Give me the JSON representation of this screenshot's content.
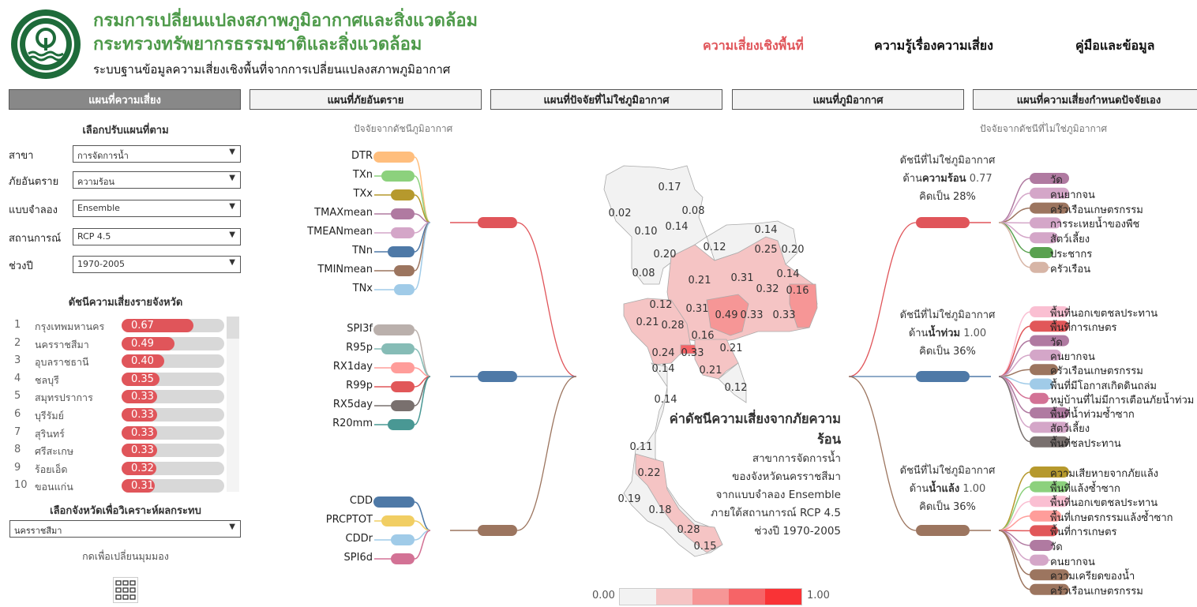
{
  "header": {
    "logo": "department-of-climate-change-and-environment-seal",
    "title_line1": "กรมการเปลี่ยนแปลงสภาพภูมิอากาศและสิ่งแวดล้อม",
    "title_line2": "กระทรวงทรัพยากรธรรมชาติและสิ่งแวดล้อม",
    "subtitle": "ระบบฐานข้อมูลความเสี่ยงเชิงพื้นที่จากการเปลี่ยนแปลงสภาพภูมิอากาศ",
    "nav": [
      {
        "label": "ความเสี่ยงเชิงพื้นที่",
        "active": true,
        "color": "#e0555a"
      },
      {
        "label": "ความรู้เรื่องความเสี่ยง"
      },
      {
        "label": "คู่มือและข้อมูล"
      }
    ]
  },
  "tabs": [
    {
      "label": "แผนที่ความเสี่ยง",
      "active": true
    },
    {
      "label": "แผนที่ภัยอันตราย"
    },
    {
      "label": "แผนที่ปัจจัยที่ไม่ใช่ภูมิอากาศ"
    },
    {
      "label": "แผนที่ภูมิอากาศ"
    },
    {
      "label": "แผนที่ความเสี่ยงกำหนดปัจจัยเอง"
    }
  ],
  "filters": {
    "title": "เลือกปรับแผนที่ตาม",
    "items": [
      {
        "label": "สาขา",
        "value": "การจัดการน้ำ"
      },
      {
        "label": "ภัยอันตราย",
        "value": "ความร้อน"
      },
      {
        "label": "แบบจำลอง",
        "value": "Ensemble"
      },
      {
        "label": "สถานการณ์",
        "value": "RCP 4.5"
      },
      {
        "label": "ช่วงปี",
        "value": "1970-2005"
      }
    ]
  },
  "ranking": {
    "title": "ดัชนีความเสี่ยงรายจังหวัด",
    "rows": [
      {
        "rank": "1",
        "province": "กรุงเทพมหานคร",
        "value": "0.67"
      },
      {
        "rank": "2",
        "province": "นครราชสีมา",
        "value": "0.49"
      },
      {
        "rank": "3",
        "province": "อุบลราชธานี",
        "value": "0.40"
      },
      {
        "rank": "4",
        "province": "ชลบุรี",
        "value": "0.35"
      },
      {
        "rank": "5",
        "province": "สมุทรปราการ",
        "value": "0.33"
      },
      {
        "rank": "6",
        "province": "บุรีรัมย์",
        "value": "0.33"
      },
      {
        "rank": "7",
        "province": "สุรินทร์",
        "value": "0.33"
      },
      {
        "rank": "8",
        "province": "ศรีสะเกษ",
        "value": "0.33"
      },
      {
        "rank": "9",
        "province": "ร้อยเอ็ด",
        "value": "0.32"
      },
      {
        "rank": "10",
        "province": "ขอนแก่น",
        "value": "0.31"
      }
    ]
  },
  "province_select": {
    "title": "เลือกจังหวัดเพื่อวิเคราะห์ผลกระทบ",
    "value": "นครราชสีมา"
  },
  "view_toggle": {
    "label": "กดเพื่อเปลี่ยนมุมมอง",
    "icon": "grid-icon"
  },
  "climate_tree": {
    "title": "ปัจจัยจากดัชนีภูมิอากาศ",
    "groups": [
      {
        "color": "#e0555a",
        "leaves": [
          {
            "label": "DTR",
            "color": "#ffbe7d"
          },
          {
            "label": "TXn",
            "color": "#8cd17d"
          },
          {
            "label": "TXx",
            "color": "#b6992d"
          },
          {
            "label": "TMAXmean",
            "color": "#b07aa1"
          },
          {
            "label": "TMEANmean",
            "color": "#d4a6c8"
          },
          {
            "label": "TNn",
            "color": "#4e79a7"
          },
          {
            "label": "TMINmean",
            "color": "#9c755f"
          },
          {
            "label": "TNx",
            "color": "#a0cbe8"
          }
        ]
      },
      {
        "color": "#4e79a7",
        "leaves": [
          {
            "label": "SPI3f",
            "color": "#bab0ac"
          },
          {
            "label": "R95p",
            "color": "#86bcb6"
          },
          {
            "label": "RX1day",
            "color": "#ff9d9a"
          },
          {
            "label": "R99p",
            "color": "#e15759"
          },
          {
            "label": "RX5day",
            "color": "#79706e"
          },
          {
            "label": "R20mm",
            "color": "#499894"
          }
        ]
      },
      {
        "color": "#9c755f",
        "leaves": [
          {
            "label": "CDD",
            "color": "#4e79a7"
          },
          {
            "label": "PRCPTOT",
            "color": "#f1ce63"
          },
          {
            "label": "CDDr",
            "color": "#a0cbe8"
          },
          {
            "label": "SPI6d",
            "color": "#d37295"
          }
        ]
      }
    ]
  },
  "nonclimate_tree": {
    "title": "ปัจจัยจากดัชนีที่ไม่ใช่ภูมิอากาศ",
    "groups": [
      {
        "color": "#e0555a",
        "info_line1": "ดัชนีที่ไม่ใช่ภูมิอากาศ",
        "info_prefix": "ด้าน",
        "info_bold": "ความร้อน",
        "info_value": "0.77",
        "info_line3": "คิดเป็น 28%",
        "leaves": [
          {
            "label": "วัด",
            "color": "#b07aa1"
          },
          {
            "label": "คนยากจน",
            "color": "#d4a6c8"
          },
          {
            "label": "ครัวเรือนเกษตรกรรม",
            "color": "#9c755f"
          },
          {
            "label": "การระเหยน้ำของพืช",
            "color": "#d4a6c8"
          },
          {
            "label": "สัตว์เลี้ยง",
            "color": "#d4a6c8"
          },
          {
            "label": "ประชากร",
            "color": "#59a14f"
          },
          {
            "label": "ครัวเรือน",
            "color": "#d7b5a6"
          }
        ]
      },
      {
        "color": "#4e79a7",
        "info_line1": "ดัชนีที่ไม่ใช่ภูมิอากาศ",
        "info_prefix": "ด้าน",
        "info_bold": "น้ำท่วม",
        "info_value": "1.00",
        "info_line3": "คิดเป็น 36%",
        "leaves": [
          {
            "label": "พื้นที่นอกเขตชลประทาน",
            "color": "#fabfd2"
          },
          {
            "label": "พื้นที่การเกษตร",
            "color": "#e15759"
          },
          {
            "label": "วัด",
            "color": "#b07aa1"
          },
          {
            "label": "คนยากจน",
            "color": "#d4a6c8"
          },
          {
            "label": "ครัวเรือนเกษตรกรรม",
            "color": "#9c755f"
          },
          {
            "label": "พื้นที่มีโอกาสเกิดดินถล่ม",
            "color": "#a0cbe8"
          },
          {
            "label": "หมู่บ้านที่ไม่มีการเตือนภัยน้ำท่วม",
            "color": "#d37295"
          },
          {
            "label": "พื้นที่น้ำท่วมซ้ำซาก",
            "color": "#b07aa1"
          },
          {
            "label": "สัตว์เลี้ยง",
            "color": "#d4a6c8"
          },
          {
            "label": "พื้นที่ชลประทาน",
            "color": "#79706e"
          }
        ]
      },
      {
        "color": "#9c755f",
        "info_line1": "ดัชนีที่ไม่ใช่ภูมิอากาศ",
        "info_prefix": "ด้าน",
        "info_bold": "น้ำแล้ง",
        "info_value": "1.00",
        "info_line3": "คิดเป็น 36%",
        "leaves": [
          {
            "label": "ความเสียหายจากภัยแล้ง",
            "color": "#b6992d"
          },
          {
            "label": "พื้นที่แล้งซ้ำซาก",
            "color": "#8cd17d"
          },
          {
            "label": "พื้นที่นอกเขตชลประทาน",
            "color": "#fabfd2"
          },
          {
            "label": "พื้นที่เกษตรกรรมแล้งซ้ำซาก",
            "color": "#ff9d9a"
          },
          {
            "label": "พื้นที่การเกษตร",
            "color": "#e15759"
          },
          {
            "label": "วัด",
            "color": "#b07aa1"
          },
          {
            "label": "คนยากจน",
            "color": "#d4a6c8"
          },
          {
            "label": "ความเครียดของน้ำ",
            "color": "#9c755f"
          },
          {
            "label": "ครัวเรือนเกษตรกรรม",
            "color": "#9c755f"
          }
        ]
      }
    ]
  },
  "map": {
    "caption_title": "ค่าดัชนีความเสี่ยงจากภัยความร้อน",
    "caption_lines": [
      "สาขาการจัดการน้ำ",
      "ของจังหวัดนครราชสีมา",
      "จากแบบจำลอง Ensemble",
      "ภายใต้สถานการณ์ RCP 4.5",
      "ช่วงปี 1970-2005"
    ],
    "province_values": [
      "0.17",
      "0.02",
      "0.08",
      "0.10",
      "0.14",
      "0.20",
      "0.12",
      "0.14",
      "0.25",
      "0.20",
      "0.08",
      "0.21",
      "0.31",
      "0.14",
      "0.32",
      "0.16",
      "0.12",
      "0.31",
      "0.49",
      "0.33",
      "0.33",
      "0.21",
      "0.28",
      "0.16",
      "0.21",
      "0.24",
      "0.33",
      "0.14",
      "0.21",
      "0.12",
      "0.14",
      "0.11",
      "0.22",
      "0.19",
      "0.18",
      "0.28",
      "0.15"
    ],
    "legend": {
      "min": "0.00",
      "max": "1.00",
      "colors": [
        "#f2f2f2",
        "#f5c4c4",
        "#f69696",
        "#f66467",
        "#f93336"
      ]
    }
  }
}
